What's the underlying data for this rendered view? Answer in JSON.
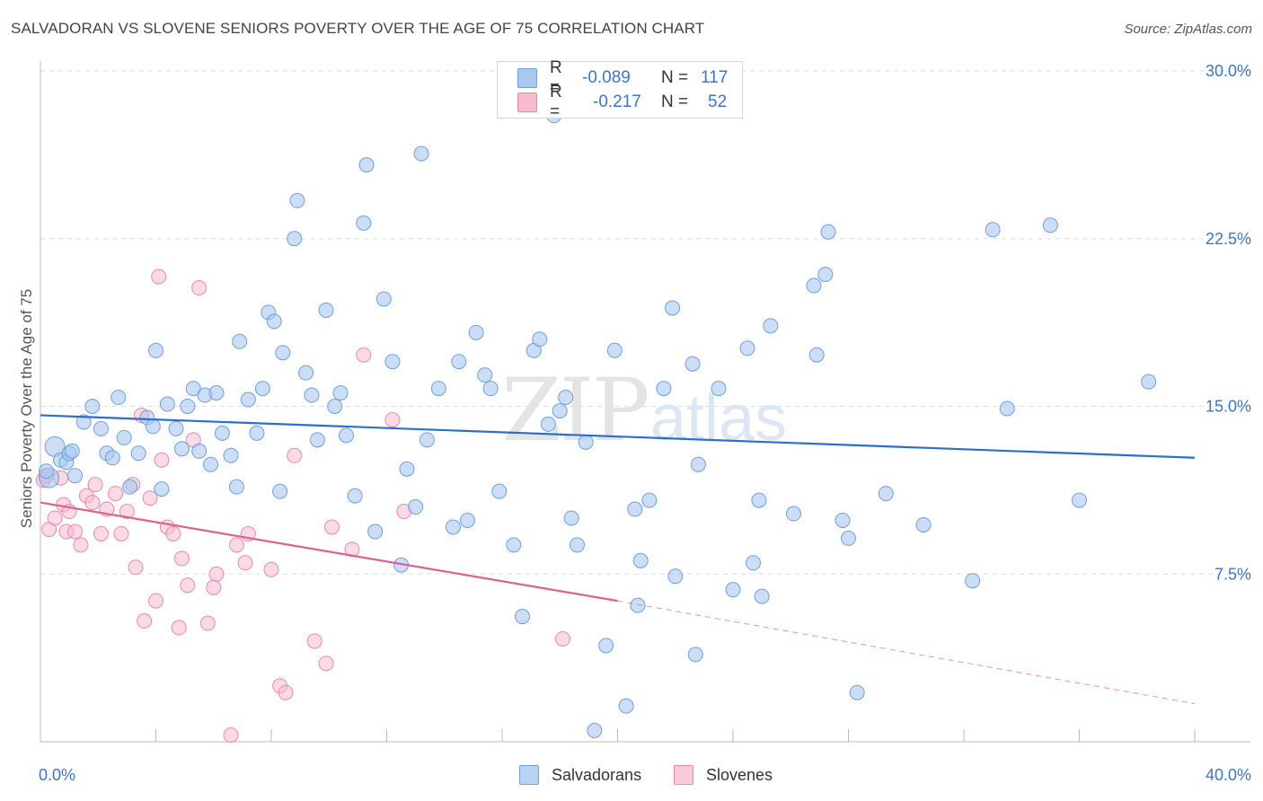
{
  "header": {
    "title": "SALVADORAN VS SLOVENE SENIORS POVERTY OVER THE AGE OF 75 CORRELATION CHART",
    "source": "Source: ZipAtlas.com"
  },
  "legend_top": {
    "rows": [
      {
        "r_label": "R =",
        "r_value": "-0.089",
        "n_label": "N =",
        "n_value": "117"
      },
      {
        "r_label": "R =",
        "r_value": "-0.217",
        "n_label": "N =",
        "n_value": "52"
      }
    ]
  },
  "legend_bottom": {
    "items": [
      {
        "label": "Salvadorans"
      },
      {
        "label": "Slovenes"
      }
    ]
  },
  "colors": {
    "salvadorans_fill": "#a9c8ef",
    "salvadorans_stroke": "#6f9fdc",
    "salvadorans_line": "#2a6fcf",
    "slovenes_fill": "#f6bccd",
    "slovenes_stroke": "#e88aa8",
    "slovenes_line": "#e0608c",
    "tick_label": "#3c74cf",
    "grid": "#dddddd"
  },
  "watermark": "ZIPatlas",
  "chart_data": {
    "type": "scatter",
    "title": "SALVADORAN VS SLOVENE SENIORS POVERTY OVER THE AGE OF 75 CORRELATION CHART",
    "xlabel": "",
    "ylabel": "Seniors Poverty Over the Age of 75",
    "xlim": [
      0,
      40
    ],
    "ylim": [
      0,
      30
    ],
    "x_tick_labels": [
      "0.0%",
      "40.0%"
    ],
    "y_ticks": [
      7.5,
      15.0,
      22.5,
      30.0
    ],
    "y_tick_labels": [
      "7.5%",
      "15.0%",
      "22.5%",
      "30.0%"
    ],
    "grid": true,
    "legend_position": "top-center",
    "series": [
      {
        "name": "Salvadorans",
        "r": -0.089,
        "n": 117,
        "trend": {
          "x": [
            0,
            40
          ],
          "y": [
            14.6,
            12.7
          ]
        },
        "points": [
          [
            0.3,
            11.8
          ],
          [
            0.5,
            13.2
          ],
          [
            0.7,
            12.6
          ],
          [
            0.9,
            12.5
          ],
          [
            1.0,
            12.9
          ],
          [
            1.2,
            11.9
          ],
          [
            1.5,
            14.3
          ],
          [
            1.8,
            15.0
          ],
          [
            2.1,
            14.0
          ],
          [
            2.3,
            12.9
          ],
          [
            2.5,
            12.7
          ],
          [
            2.7,
            15.4
          ],
          [
            2.9,
            13.6
          ],
          [
            3.1,
            11.4
          ],
          [
            3.4,
            12.9
          ],
          [
            3.7,
            14.5
          ],
          [
            3.9,
            14.1
          ],
          [
            4.0,
            17.5
          ],
          [
            4.2,
            11.3
          ],
          [
            4.4,
            15.1
          ],
          [
            4.7,
            14.0
          ],
          [
            4.9,
            13.1
          ],
          [
            5.1,
            15.0
          ],
          [
            5.3,
            15.8
          ],
          [
            5.5,
            13.0
          ],
          [
            5.7,
            15.5
          ],
          [
            5.9,
            12.4
          ],
          [
            6.1,
            15.6
          ],
          [
            6.3,
            13.8
          ],
          [
            6.6,
            12.8
          ],
          [
            6.8,
            11.4
          ],
          [
            6.9,
            17.9
          ],
          [
            7.2,
            15.3
          ],
          [
            7.5,
            13.8
          ],
          [
            7.7,
            15.8
          ],
          [
            7.9,
            19.2
          ],
          [
            8.1,
            18.8
          ],
          [
            8.3,
            11.2
          ],
          [
            8.4,
            17.4
          ],
          [
            8.8,
            22.5
          ],
          [
            8.9,
            24.2
          ],
          [
            9.2,
            16.5
          ],
          [
            9.4,
            15.5
          ],
          [
            9.6,
            13.5
          ],
          [
            9.9,
            19.3
          ],
          [
            10.2,
            15.0
          ],
          [
            10.4,
            15.6
          ],
          [
            10.6,
            13.7
          ],
          [
            10.9,
            11.0
          ],
          [
            11.2,
            23.2
          ],
          [
            11.3,
            25.8
          ],
          [
            11.6,
            9.4
          ],
          [
            11.9,
            19.8
          ],
          [
            12.2,
            17.0
          ],
          [
            12.5,
            7.9
          ],
          [
            12.7,
            12.2
          ],
          [
            13.0,
            10.5
          ],
          [
            13.2,
            26.3
          ],
          [
            13.4,
            13.5
          ],
          [
            13.8,
            15.8
          ],
          [
            14.3,
            9.6
          ],
          [
            14.5,
            17.0
          ],
          [
            14.8,
            9.9
          ],
          [
            15.1,
            18.3
          ],
          [
            15.4,
            16.4
          ],
          [
            15.6,
            15.8
          ],
          [
            15.9,
            11.2
          ],
          [
            16.4,
            8.8
          ],
          [
            16.7,
            5.6
          ],
          [
            17.1,
            17.5
          ],
          [
            17.3,
            18.0
          ],
          [
            17.6,
            14.2
          ],
          [
            17.8,
            28.0
          ],
          [
            18.0,
            14.8
          ],
          [
            18.2,
            15.4
          ],
          [
            18.4,
            10.0
          ],
          [
            18.6,
            8.8
          ],
          [
            18.9,
            13.4
          ],
          [
            19.2,
            0.5
          ],
          [
            19.6,
            4.3
          ],
          [
            19.9,
            17.5
          ],
          [
            20.3,
            1.6
          ],
          [
            20.6,
            10.4
          ],
          [
            20.7,
            6.1
          ],
          [
            20.8,
            8.1
          ],
          [
            21.1,
            10.8
          ],
          [
            21.6,
            15.8
          ],
          [
            21.9,
            19.4
          ],
          [
            22.0,
            7.4
          ],
          [
            22.6,
            16.9
          ],
          [
            22.7,
            3.9
          ],
          [
            22.8,
            12.4
          ],
          [
            23.5,
            15.8
          ],
          [
            24.0,
            6.8
          ],
          [
            24.5,
            17.6
          ],
          [
            24.7,
            8.0
          ],
          [
            24.9,
            10.8
          ],
          [
            25.0,
            6.5
          ],
          [
            25.3,
            18.6
          ],
          [
            26.1,
            10.2
          ],
          [
            26.8,
            20.4
          ],
          [
            26.9,
            17.3
          ],
          [
            27.2,
            20.9
          ],
          [
            27.3,
            22.8
          ],
          [
            27.8,
            9.9
          ],
          [
            28.0,
            9.1
          ],
          [
            28.3,
            2.2
          ],
          [
            29.3,
            11.1
          ],
          [
            30.6,
            9.7
          ],
          [
            32.3,
            7.2
          ],
          [
            33.0,
            22.9
          ],
          [
            33.5,
            14.9
          ],
          [
            35.0,
            23.1
          ],
          [
            36.0,
            10.8
          ],
          [
            38.4,
            16.1
          ],
          [
            0.2,
            12.1
          ],
          [
            1.1,
            13.0
          ]
        ]
      },
      {
        "name": "Slovenes",
        "r": -0.217,
        "n": 52,
        "trend": {
          "x": [
            0,
            20
          ],
          "y": [
            10.7,
            6.3
          ]
        },
        "trend_dashed": {
          "x": [
            20,
            40
          ],
          "y": [
            6.3,
            1.7
          ]
        },
        "points": [
          [
            0.1,
            11.7
          ],
          [
            0.2,
            11.9
          ],
          [
            0.3,
            9.5
          ],
          [
            0.5,
            10.0
          ],
          [
            0.7,
            11.8
          ],
          [
            0.8,
            10.6
          ],
          [
            0.9,
            9.4
          ],
          [
            1.0,
            10.3
          ],
          [
            1.2,
            9.4
          ],
          [
            1.4,
            8.8
          ],
          [
            1.6,
            11.0
          ],
          [
            1.8,
            10.7
          ],
          [
            1.9,
            11.5
          ],
          [
            2.1,
            9.3
          ],
          [
            2.3,
            10.4
          ],
          [
            2.6,
            11.1
          ],
          [
            2.8,
            9.3
          ],
          [
            3.0,
            10.3
          ],
          [
            3.2,
            11.5
          ],
          [
            3.3,
            7.8
          ],
          [
            3.5,
            14.6
          ],
          [
            3.6,
            5.4
          ],
          [
            3.8,
            10.9
          ],
          [
            4.0,
            6.3
          ],
          [
            4.1,
            20.8
          ],
          [
            4.2,
            12.6
          ],
          [
            4.4,
            9.6
          ],
          [
            4.6,
            9.3
          ],
          [
            4.8,
            5.1
          ],
          [
            4.9,
            8.2
          ],
          [
            5.1,
            7.0
          ],
          [
            5.3,
            13.5
          ],
          [
            5.5,
            20.3
          ],
          [
            5.8,
            5.3
          ],
          [
            6.0,
            6.9
          ],
          [
            6.1,
            7.5
          ],
          [
            6.6,
            0.3
          ],
          [
            6.8,
            8.8
          ],
          [
            7.1,
            8.0
          ],
          [
            7.2,
            9.3
          ],
          [
            8.0,
            7.7
          ],
          [
            8.3,
            2.5
          ],
          [
            8.5,
            2.2
          ],
          [
            8.8,
            12.8
          ],
          [
            9.5,
            4.5
          ],
          [
            9.9,
            3.5
          ],
          [
            10.1,
            9.6
          ],
          [
            10.8,
            8.6
          ],
          [
            11.2,
            17.3
          ],
          [
            12.2,
            14.4
          ],
          [
            12.6,
            10.3
          ],
          [
            18.1,
            4.6
          ]
        ]
      }
    ]
  }
}
